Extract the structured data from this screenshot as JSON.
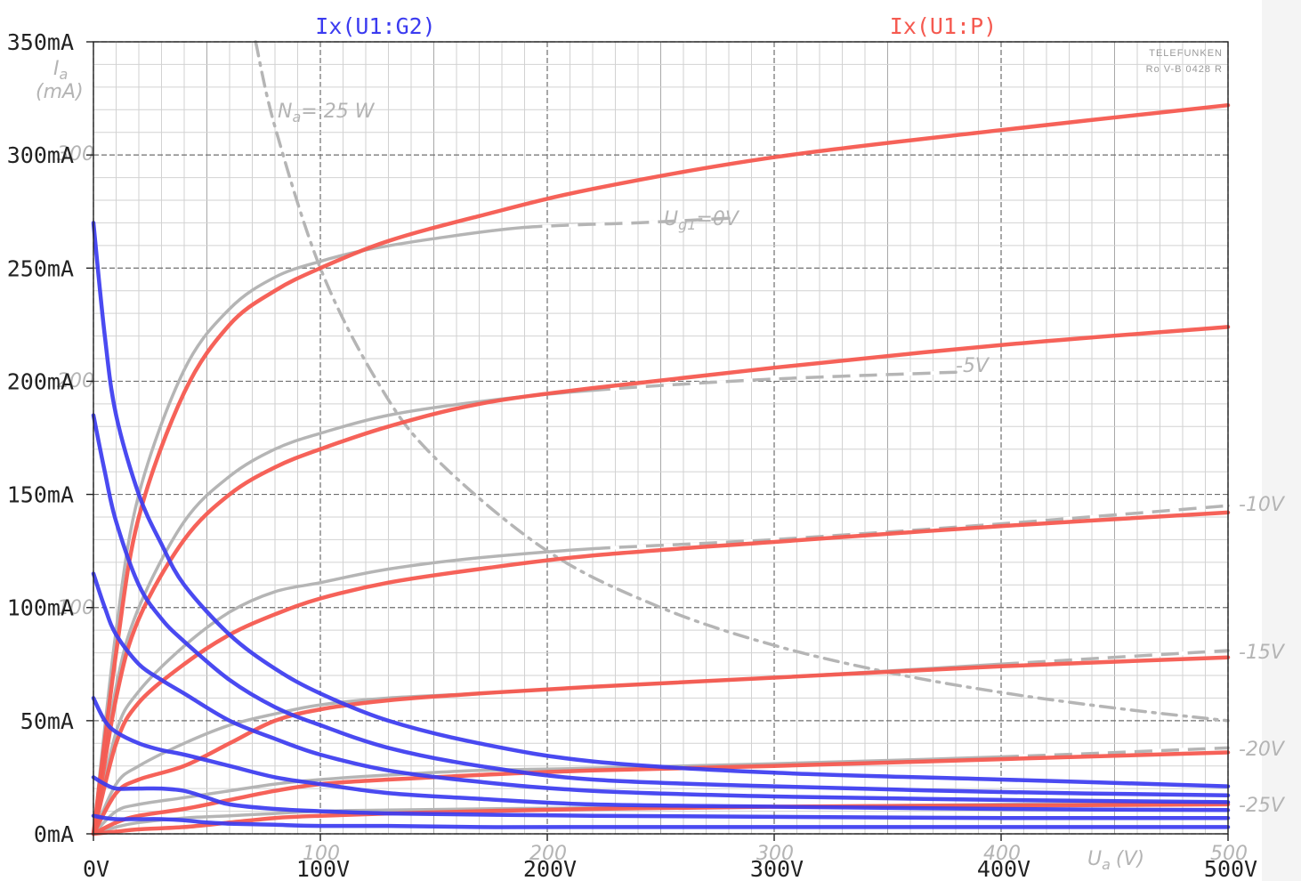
{
  "chart_data": {
    "type": "line",
    "title": "",
    "xlabel": "",
    "ylabel": "",
    "xlim": [
      0,
      500
    ],
    "ylim": [
      0,
      350
    ],
    "x_ticks": [
      "0V",
      "100V",
      "200V",
      "300V",
      "400V",
      "500V"
    ],
    "y_ticks": [
      "0mA",
      "50mA",
      "100mA",
      "150mA",
      "200mA",
      "250mA",
      "300mA",
      "350mA"
    ],
    "grid": true,
    "legend": [
      "Ix(U1:G2)",
      "Ix(U1:P)"
    ],
    "legend_placement": "top",
    "series_colors": {
      "Ix(U1:G2)": "#3b3bf0",
      "Ix(U1:P)": "#f55a50"
    },
    "scanned_datasheet_labels": {
      "manufacturer": "TELEFUNKEN",
      "sheet_id": "Ro V-B 0428 R",
      "ia": "I",
      "ia_sub": "a",
      "ia_unit": "(mA)",
      "ua": "U",
      "ua_sub": "a",
      "ua_unit": "(V)",
      "na": "N",
      "na_sub": "a",
      "na_value": "= 25 W",
      "ug1": "U",
      "ug1_sub": "g1",
      "ug1_value": "=0V",
      "curve_labels": [
        "-5V",
        "-10V",
        "-15V",
        "-20V",
        "-25V"
      ],
      "faint_y": [
        "300",
        "200",
        "100"
      ],
      "faint_x": [
        "100",
        "200",
        "300",
        "400",
        "500"
      ]
    },
    "series": [
      {
        "name": "Ix(U1:P)",
        "curve": 1,
        "x": [
          0,
          10,
          20,
          40,
          60,
          80,
          100,
          130,
          170,
          220,
          300,
          400,
          500
        ],
        "y": [
          0,
          80,
          140,
          195,
          225,
          240,
          250,
          262,
          273,
          285,
          299,
          311,
          322
        ]
      },
      {
        "name": "Ix(U1:P)",
        "curve": 2,
        "x": [
          0,
          10,
          20,
          40,
          60,
          80,
          100,
          130,
          170,
          220,
          300,
          400,
          500
        ],
        "y": [
          0,
          60,
          95,
          130,
          150,
          162,
          170,
          180,
          190,
          197,
          206,
          216,
          224
        ]
      },
      {
        "name": "Ix(U1:P)",
        "curve": 3,
        "x": [
          0,
          10,
          20,
          40,
          60,
          80,
          100,
          130,
          170,
          220,
          300,
          400,
          500
        ],
        "y": [
          0,
          40,
          58,
          75,
          88,
          97,
          104,
          111,
          117,
          123,
          129,
          136,
          142
        ]
      },
      {
        "name": "Ix(U1:P)",
        "curve": 4,
        "x": [
          0,
          10,
          20,
          40,
          60,
          80,
          100,
          130,
          170,
          220,
          300,
          400,
          500
        ],
        "y": [
          0,
          18,
          24,
          30,
          40,
          50,
          55,
          59,
          62,
          65,
          69,
          74,
          78
        ]
      },
      {
        "name": "Ix(U1:P)",
        "curve": 5,
        "x": [
          0,
          10,
          20,
          40,
          60,
          80,
          100,
          130,
          170,
          220,
          300,
          400,
          500
        ],
        "y": [
          0,
          5,
          8,
          11,
          15,
          19,
          22,
          24,
          26,
          28,
          30,
          33,
          36
        ]
      },
      {
        "name": "Ix(U1:P)",
        "curve": 6,
        "x": [
          0,
          10,
          20,
          40,
          60,
          80,
          100,
          130,
          170,
          220,
          300,
          400,
          500
        ],
        "y": [
          0,
          1,
          2,
          3,
          5,
          7,
          8,
          9,
          10,
          11,
          12,
          12.5,
          13
        ]
      },
      {
        "name": "Ix(U1:G2)",
        "curve": 1,
        "x": [
          0,
          5,
          10,
          20,
          30,
          40,
          60,
          80,
          100,
          130,
          170,
          220,
          300,
          400,
          500
        ],
        "y": [
          270,
          220,
          185,
          150,
          128,
          110,
          88,
          73,
          62,
          50,
          40,
          32,
          27,
          24,
          21
        ]
      },
      {
        "name": "Ix(U1:G2)",
        "curve": 2,
        "x": [
          0,
          5,
          10,
          20,
          30,
          40,
          60,
          80,
          100,
          130,
          170,
          220,
          300,
          400,
          500
        ],
        "y": [
          185,
          160,
          138,
          110,
          95,
          85,
          68,
          56,
          48,
          38,
          30,
          24,
          21,
          18.5,
          17
        ]
      },
      {
        "name": "Ix(U1:G2)",
        "curve": 3,
        "x": [
          0,
          5,
          10,
          20,
          30,
          40,
          60,
          80,
          100,
          130,
          170,
          220,
          300,
          400,
          500
        ],
        "y": [
          115,
          100,
          88,
          75,
          68,
          62,
          50,
          42,
          35,
          28,
          23,
          19,
          16.5,
          15,
          14
        ]
      },
      {
        "name": "Ix(U1:G2)",
        "curve": 4,
        "x": [
          0,
          5,
          10,
          20,
          30,
          40,
          60,
          80,
          100,
          130,
          170,
          220,
          300,
          400,
          500
        ],
        "y": [
          60,
          50,
          45,
          40,
          37,
          35,
          30,
          25,
          22,
          18,
          15.5,
          13,
          12,
          11,
          10.5
        ]
      },
      {
        "name": "Ix(U1:G2)",
        "curve": 5,
        "x": [
          0,
          5,
          10,
          20,
          30,
          40,
          50,
          60,
          80,
          100,
          130,
          170,
          220,
          300,
          400,
          500
        ],
        "y": [
          25,
          22,
          20,
          20,
          20,
          19,
          16,
          13,
          11,
          10,
          9,
          8.5,
          8,
          7.5,
          7,
          7
        ]
      },
      {
        "name": "Ix(U1:G2)",
        "curve": 6,
        "x": [
          0,
          5,
          10,
          20,
          30,
          40,
          50,
          60,
          80,
          100,
          130,
          170,
          220,
          300,
          400,
          500
        ],
        "y": [
          8,
          7,
          6.5,
          6.5,
          6.5,
          6,
          5,
          4.5,
          4,
          3.5,
          3.5,
          3,
          3,
          3,
          3,
          3
        ]
      }
    ],
    "scanned_curves": [
      {
        "label": "Ug1=0V",
        "x": [
          0,
          10,
          20,
          40,
          60,
          80,
          100,
          120,
          150,
          190,
          240,
          280
        ],
        "y": [
          0,
          90,
          150,
          205,
          232,
          246,
          253,
          258,
          263,
          268,
          270,
          272
        ]
      },
      {
        "label": "-5V",
        "x": [
          0,
          10,
          20,
          40,
          60,
          80,
          100,
          130,
          170,
          220,
          300,
          380
        ],
        "y": [
          0,
          65,
          100,
          138,
          158,
          170,
          177,
          185,
          191,
          196,
          201,
          204
        ]
      },
      {
        "label": "-10V",
        "x": [
          0,
          10,
          20,
          40,
          60,
          80,
          100,
          130,
          170,
          220,
          300,
          400,
          500
        ],
        "y": [
          0,
          45,
          63,
          83,
          98,
          107,
          111,
          117,
          122,
          126,
          130,
          137,
          145
        ]
      },
      {
        "label": "-15V",
        "x": [
          0,
          10,
          20,
          40,
          60,
          80,
          100,
          130,
          170,
          220,
          300,
          400,
          500
        ],
        "y": [
          0,
          22,
          30,
          40,
          48,
          53,
          57,
          60,
          62,
          65,
          69,
          75,
          81
        ]
      },
      {
        "label": "-20V",
        "x": [
          0,
          10,
          20,
          40,
          60,
          80,
          100,
          130,
          170,
          220,
          300,
          400,
          500
        ],
        "y": [
          0,
          10,
          13,
          16,
          19,
          22,
          24,
          26,
          28,
          29,
          31,
          34,
          38
        ]
      },
      {
        "label": "-25V",
        "x": [
          0,
          10,
          20,
          40,
          60,
          80,
          100,
          130,
          170,
          220,
          300,
          400,
          500
        ],
        "y": [
          0,
          3,
          5,
          7,
          8,
          9,
          10,
          10.5,
          11,
          11.5,
          12,
          13,
          14
        ]
      },
      {
        "label": "Na=25W",
        "x": [
          71.5,
          80,
          100,
          125,
          150,
          200,
          250,
          300,
          350,
          400,
          450,
          500
        ],
        "y": [
          350,
          312.5,
          250,
          200,
          166.7,
          125,
          100,
          83.3,
          71.4,
          62.5,
          55.6,
          50
        ]
      }
    ]
  }
}
